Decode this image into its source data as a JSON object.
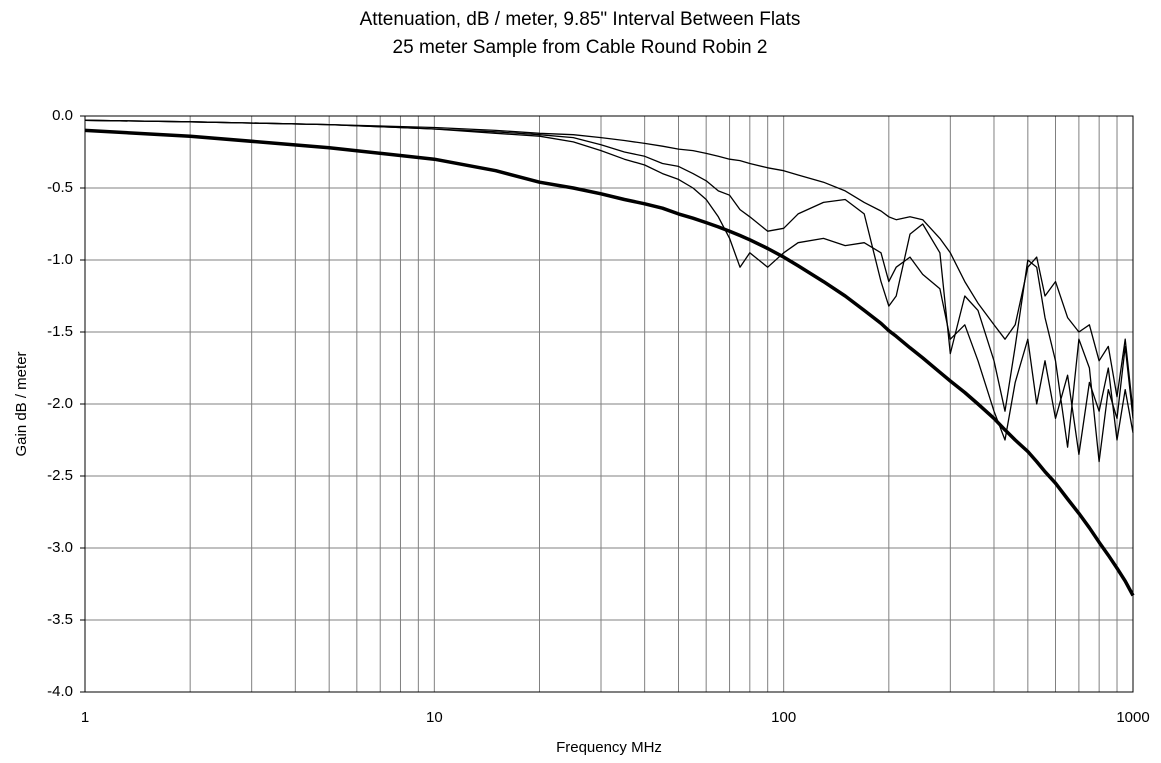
{
  "chart_data": {
    "type": "line",
    "title": "Attenuation, dB / meter, 9.85\" Interval Between Flats",
    "subtitle": "25 meter Sample from Cable Round Robin 2",
    "xlabel": "Frequency  MHz",
    "ylabel": "Gain  dB / meter",
    "xlog": true,
    "grid": true,
    "xlim": [
      1,
      1000
    ],
    "ylim": [
      -4,
      0
    ],
    "xticks": [
      1,
      10,
      100,
      1000
    ],
    "xgrid_minor": [
      2,
      3,
      4,
      5,
      6,
      7,
      8,
      9,
      20,
      30,
      40,
      50,
      60,
      70,
      80,
      90,
      200,
      300,
      400,
      500,
      600,
      700,
      800,
      900
    ],
    "yticks": [
      {
        "value": 0,
        "label": "0.0"
      },
      -0.5,
      {
        "value": -1,
        "label": "-1.0"
      },
      -1.5,
      {
        "value": -2,
        "label": "-2.0"
      },
      -2.5,
      {
        "value": -3,
        "label": "-3.0"
      },
      -3.5,
      {
        "value": -4,
        "label": "-4.0"
      }
    ],
    "x": [
      1,
      2,
      5,
      10,
      15,
      20,
      25,
      30,
      35,
      40,
      45,
      50,
      55,
      60,
      65,
      70,
      75,
      80,
      90,
      100,
      110,
      130,
      150,
      170,
      190,
      200,
      210,
      230,
      250,
      280,
      300,
      330,
      360,
      400,
      430,
      460,
      500,
      530,
      560,
      600,
      650,
      700,
      750,
      800,
      850,
      900,
      950,
      1000
    ],
    "series": [
      {
        "color": "#000000",
        "width": 3.5,
        "values": [
          -0.1,
          -0.14,
          -0.22,
          -0.3,
          -0.38,
          -0.46,
          -0.5,
          -0.54,
          -0.58,
          -0.61,
          -0.64,
          -0.68,
          -0.71,
          -0.74,
          -0.77,
          -0.8,
          -0.83,
          -0.86,
          -0.92,
          -0.98,
          -1.04,
          -1.15,
          -1.25,
          -1.35,
          -1.44,
          -1.49,
          -1.53,
          -1.61,
          -1.68,
          -1.78,
          -1.84,
          -1.92,
          -2.0,
          -2.1,
          -2.18,
          -2.25,
          -2.33,
          -2.4,
          -2.47,
          -2.55,
          -2.66,
          -2.76,
          -2.86,
          -2.96,
          -3.05,
          -3.14,
          -3.23,
          -3.33
        ]
      },
      {
        "color": "#000000",
        "width": 1.3,
        "values": [
          -0.03,
          -0.04,
          -0.06,
          -0.08,
          -0.1,
          -0.12,
          -0.13,
          -0.15,
          -0.17,
          -0.19,
          -0.21,
          -0.23,
          -0.24,
          -0.26,
          -0.28,
          -0.3,
          -0.31,
          -0.33,
          -0.36,
          -0.38,
          -0.41,
          -0.46,
          -0.52,
          -0.6,
          -0.66,
          -0.7,
          -0.72,
          -0.7,
          -0.72,
          -0.85,
          -0.95,
          -1.15,
          -1.3,
          -1.45,
          -1.55,
          -1.45,
          -1.05,
          -0.98,
          -1.25,
          -1.15,
          -1.4,
          -1.5,
          -1.45,
          -1.7,
          -1.6,
          -1.95,
          -1.55,
          -2.05
        ]
      },
      {
        "color": "#000000",
        "width": 1.3,
        "values": [
          -0.03,
          -0.04,
          -0.06,
          -0.09,
          -0.11,
          -0.13,
          -0.15,
          -0.2,
          -0.25,
          -0.28,
          -0.33,
          -0.35,
          -0.4,
          -0.45,
          -0.52,
          -0.55,
          -0.65,
          -0.7,
          -0.8,
          -0.78,
          -0.68,
          -0.6,
          -0.58,
          -0.68,
          -1.15,
          -1.32,
          -1.25,
          -0.82,
          -0.75,
          -0.95,
          -1.65,
          -1.25,
          -1.35,
          -1.7,
          -2.05,
          -1.6,
          -1.0,
          -1.05,
          -1.4,
          -1.7,
          -2.3,
          -1.55,
          -1.75,
          -2.4,
          -1.9,
          -2.1,
          -1.6,
          -2.1
        ]
      },
      {
        "color": "#000000",
        "width": 1.3,
        "values": [
          -0.03,
          -0.04,
          -0.06,
          -0.09,
          -0.12,
          -0.14,
          -0.18,
          -0.24,
          -0.3,
          -0.34,
          -0.4,
          -0.44,
          -0.5,
          -0.58,
          -0.7,
          -0.85,
          -1.05,
          -0.95,
          -1.05,
          -0.95,
          -0.88,
          -0.85,
          -0.9,
          -0.88,
          -0.95,
          -1.15,
          -1.05,
          -0.98,
          -1.1,
          -1.2,
          -1.55,
          -1.45,
          -1.7,
          -2.05,
          -2.25,
          -1.85,
          -1.55,
          -2.0,
          -1.7,
          -2.1,
          -1.8,
          -2.35,
          -1.85,
          -2.05,
          -1.75,
          -2.25,
          -1.9,
          -2.2
        ]
      }
    ]
  }
}
